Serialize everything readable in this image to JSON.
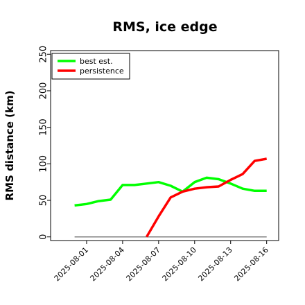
{
  "chart_data": {
    "type": "line",
    "title": "RMS, ice edge",
    "xlabel": "",
    "ylabel": "RMS distance (km)",
    "ylim": [
      -5,
      255
    ],
    "xlim": [
      "2025-07-29",
      "2025-08-17"
    ],
    "yticks": [
      0,
      50,
      100,
      150,
      200,
      250
    ],
    "xticks": [
      "2025-08-01",
      "2025-08-04",
      "2025-08-07",
      "2025-08-10",
      "2025-08-13",
      "2025-08-16"
    ],
    "grid": false,
    "legend_position": "top-left",
    "series": [
      {
        "name": "best est.",
        "color": "#00ff00",
        "x": [
          "2025-07-31",
          "2025-08-01",
          "2025-08-02",
          "2025-08-03",
          "2025-08-04",
          "2025-08-05",
          "2025-08-06",
          "2025-08-07",
          "2025-08-08",
          "2025-08-09",
          "2025-08-10",
          "2025-08-11",
          "2025-08-12",
          "2025-08-13",
          "2025-08-14",
          "2025-08-15",
          "2025-08-16"
        ],
        "y": [
          43,
          45,
          49,
          51,
          71,
          71,
          73,
          75,
          70,
          62,
          75,
          81,
          79,
          73,
          66,
          63,
          63
        ]
      },
      {
        "name": "persistence",
        "color": "#ff0000",
        "x": [
          "2025-08-06",
          "2025-08-07",
          "2025-08-08",
          "2025-08-09",
          "2025-08-10",
          "2025-08-11",
          "2025-08-12",
          "2025-08-13",
          "2025-08-14",
          "2025-08-15",
          "2025-08-16"
        ],
        "y": [
          0,
          28,
          54,
          62,
          66,
          68,
          69,
          78,
          86,
          104,
          107
        ]
      },
      {
        "name": "",
        "color": "#808080",
        "x": [
          "2025-07-31",
          "2025-08-16"
        ],
        "y": [
          0,
          0
        ]
      }
    ]
  }
}
